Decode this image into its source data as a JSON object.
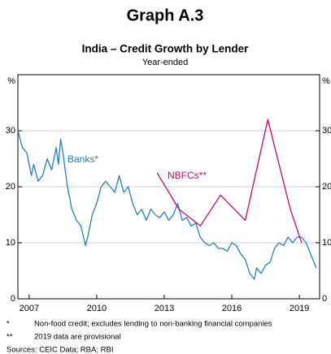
{
  "chart_data": {
    "type": "line",
    "title": "Graph A.3",
    "subtitle": "India – Credit Growth by Lender",
    "note": "Year-ended",
    "y_unit": "%",
    "y2_unit": "%",
    "xlim": [
      2006.5,
      2019.9
    ],
    "xticks": [
      2007,
      2010,
      2013,
      2016,
      2019
    ],
    "ylim": [
      0,
      40
    ],
    "yticks": [
      0,
      10,
      20,
      30
    ],
    "y2lim": [
      0,
      40
    ],
    "y2ticks": [
      0,
      10,
      20,
      30
    ],
    "grid": true,
    "series": [
      {
        "name": "Banks*",
        "color": "#1f82c4",
        "x": [
          2006.5,
          2006.7,
          2006.9,
          2007.1,
          2007.2,
          2007.4,
          2007.6,
          2007.8,
          2008.0,
          2008.2,
          2008.3,
          2008.4,
          2008.5,
          2008.7,
          2008.9,
          2009.1,
          2009.3,
          2009.5,
          2009.6,
          2009.8,
          2010.0,
          2010.2,
          2010.4,
          2010.6,
          2010.8,
          2011.0,
          2011.2,
          2011.4,
          2011.6,
          2011.8,
          2012.0,
          2012.2,
          2012.4,
          2012.6,
          2012.8,
          2013.0,
          2013.2,
          2013.4,
          2013.6,
          2013.8,
          2014.0,
          2014.2,
          2014.4,
          2014.6,
          2014.8,
          2015.0,
          2015.2,
          2015.4,
          2015.6,
          2015.8,
          2016.0,
          2016.2,
          2016.4,
          2016.6,
          2016.8,
          2017.0,
          2017.1,
          2017.3,
          2017.5,
          2017.7,
          2017.9,
          2018.1,
          2018.3,
          2018.5,
          2018.7,
          2018.9,
          2019.1,
          2019.3,
          2019.5,
          2019.6,
          2019.75
        ],
        "values": [
          30,
          27,
          26,
          22,
          24,
          21,
          22,
          25,
          23,
          27,
          24,
          28.5,
          26,
          20,
          16,
          14,
          13,
          9.5,
          11,
          15,
          17,
          20,
          21,
          20,
          19,
          22,
          19,
          20,
          17,
          15,
          16,
          14,
          16,
          15,
          14.5,
          15.5,
          14,
          15,
          17,
          14,
          14.5,
          13,
          13.5,
          11,
          10,
          9.5,
          10,
          9,
          9,
          8.5,
          10,
          9.5,
          8,
          7,
          4.5,
          3.5,
          5.5,
          4.5,
          6,
          6.5,
          9,
          10,
          9.5,
          11,
          10,
          11,
          11,
          10,
          8,
          7,
          5.5
        ]
      },
      {
        "name": "NBFCs**",
        "color": "#c8096e",
        "x": [
          2012.68,
          2013.65,
          2014.6,
          2015.5,
          2016.6,
          2017.6,
          2018.6,
          2019.1
        ],
        "values": [
          22.5,
          16,
          13,
          18.5,
          14,
          32,
          16,
          10
        ]
      }
    ],
    "footnotes": [
      {
        "mark": "*",
        "text": "Non-food credit; excludes lending to non-banking financial companies"
      },
      {
        "mark": "**",
        "text": "2019 data are provisional"
      }
    ],
    "sources": "Sources: CEIC Data; RBA; RBI"
  }
}
